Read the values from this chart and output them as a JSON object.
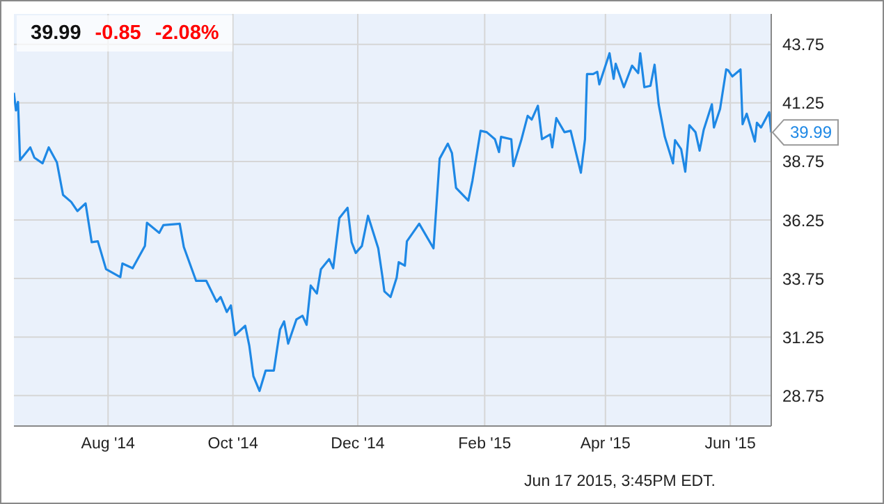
{
  "chart_data": {
    "type": "line",
    "x": [
      "2014-06-16",
      "2014-06-17",
      "2014-06-18",
      "2014-06-19",
      "2014-06-24",
      "2014-06-26",
      "2014-06-30",
      "2014-07-03",
      "2014-07-07",
      "2014-07-10",
      "2014-07-14",
      "2014-07-17",
      "2014-07-21",
      "2014-07-24",
      "2014-07-27",
      "2014-07-31",
      "2014-08-07",
      "2014-08-08",
      "2014-08-13",
      "2014-08-19",
      "2014-08-20",
      "2014-08-26",
      "2014-08-28",
      "2014-09-05",
      "2014-09-07",
      "2014-09-13",
      "2014-09-18",
      "2014-09-23",
      "2014-09-25",
      "2014-09-28",
      "2014-09-30",
      "2014-10-02",
      "2014-10-07",
      "2014-10-09",
      "2014-10-11",
      "2014-10-14",
      "2014-10-17",
      "2014-10-21",
      "2014-10-24",
      "2014-10-26",
      "2014-10-28",
      "2014-11-01",
      "2014-11-04",
      "2014-11-06",
      "2014-11-08",
      "2014-11-11",
      "2014-11-13",
      "2014-11-17",
      "2014-11-19",
      "2014-11-22",
      "2014-11-26",
      "2014-11-28",
      "2014-11-30",
      "2014-12-03",
      "2014-12-06",
      "2014-12-11",
      "2014-12-13",
      "2014-12-14",
      "2014-12-17",
      "2014-12-20",
      "2014-12-21",
      "2014-12-24",
      "2014-12-25",
      "2014-12-31",
      "2015-01-07",
      "2015-01-10",
      "2015-01-14",
      "2015-01-16",
      "2015-01-18",
      "2015-01-24",
      "2015-01-26",
      "2015-01-30",
      "2015-02-02",
      "2015-02-06",
      "2015-02-08",
      "2015-02-09",
      "2015-02-14",
      "2015-02-15",
      "2015-02-19",
      "2015-02-22",
      "2015-02-24",
      "2015-02-27",
      "2015-03-01",
      "2015-03-05",
      "2015-03-06",
      "2015-03-08",
      "2015-03-12",
      "2015-03-15",
      "2015-03-20",
      "2015-03-22",
      "2015-03-23",
      "2015-03-26",
      "2015-03-28",
      "2015-03-29",
      "2015-04-03",
      "2015-04-05",
      "2015-04-06",
      "2015-04-10",
      "2015-04-14",
      "2015-04-17",
      "2015-04-18",
      "2015-04-20",
      "2015-04-23",
      "2015-04-25",
      "2015-04-27",
      "2015-04-30",
      "2015-05-04",
      "2015-05-05",
      "2015-05-08",
      "2015-05-10",
      "2015-05-12",
      "2015-05-15",
      "2015-05-17",
      "2015-05-19",
      "2015-05-23",
      "2015-05-24",
      "2015-05-27",
      "2015-05-30",
      "2015-05-31",
      "2015-06-02",
      "2015-06-06",
      "2015-06-07",
      "2015-06-09",
      "2015-06-13",
      "2015-06-14",
      "2015-06-16",
      "2015-06-20",
      "2015-06-21"
    ],
    "series": [
      {
        "color": "#1e88e5",
        "values": [
          41.68,
          40.93,
          41.29,
          38.81,
          39.35,
          38.91,
          38.67,
          39.35,
          38.71,
          37.32,
          37.02,
          36.63,
          36.96,
          35.3,
          35.34,
          34.15,
          33.81,
          34.39,
          34.19,
          35.14,
          36.13,
          35.7,
          36.03,
          36.09,
          35.1,
          33.65,
          33.65,
          32.76,
          32.96,
          32.32,
          32.6,
          31.33,
          31.73,
          30.88,
          29.58,
          28.95,
          29.82,
          29.82,
          31.57,
          31.92,
          30.97,
          32.0,
          32.16,
          31.77,
          33.45,
          33.11,
          34.15,
          34.58,
          34.19,
          36.33,
          36.77,
          35.3,
          34.84,
          35.14,
          36.43,
          35.04,
          33.85,
          33.2,
          32.96,
          33.79,
          34.45,
          34.3,
          35.34,
          36.09,
          35.04,
          38.87,
          39.51,
          39.11,
          37.62,
          37.08,
          37.92,
          40.06,
          40.0,
          39.7,
          39.15,
          39.8,
          39.7,
          38.55,
          39.7,
          40.7,
          40.54,
          41.13,
          39.7,
          39.9,
          39.35,
          40.6,
          40.0,
          40.06,
          38.27,
          39.7,
          42.48,
          42.48,
          42.58,
          42.04,
          43.37,
          42.28,
          42.92,
          41.92,
          42.84,
          42.52,
          43.37,
          41.92,
          41.98,
          42.88,
          41.19,
          39.8,
          38.67,
          39.66,
          39.27,
          38.31,
          40.3,
          40.0,
          39.21,
          40.1,
          41.19,
          40.2,
          40.99,
          42.68,
          42.64,
          42.38,
          42.68,
          40.34,
          40.79,
          39.6,
          40.4,
          40.2,
          40.85,
          39.99
        ]
      }
    ],
    "xlim": [
      "2014-06-16",
      "2015-06-21"
    ],
    "xticks": [
      {
        "value": "2014-08-01",
        "label": "Aug '14"
      },
      {
        "value": "2014-10-01",
        "label": "Oct '14"
      },
      {
        "value": "2014-12-01",
        "label": "Dec '14"
      },
      {
        "value": "2015-02-01",
        "label": "Feb '15"
      },
      {
        "value": "2015-04-01",
        "label": "Apr '15"
      },
      {
        "value": "2015-06-01",
        "label": "Jun '15"
      }
    ],
    "ylim": [
      27.45,
      45.05
    ],
    "yticks": [
      28.75,
      31.25,
      33.75,
      36.25,
      38.75,
      41.25,
      43.75
    ],
    "grid": true,
    "marker": "none",
    "annotations": [
      "39.99",
      "-0.85",
      "-2.08%",
      {
        "text": "39.99",
        "x": "2015-06-21",
        "y": 39.99
      },
      "Jun 17 2015, 3:45PM EDT."
    ]
  }
}
